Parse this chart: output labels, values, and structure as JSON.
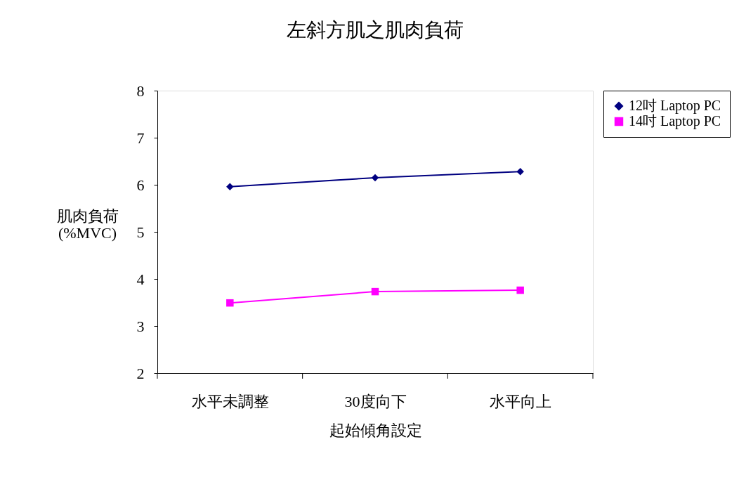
{
  "chart_data": {
    "type": "line",
    "title": "左斜方肌之肌肉負荷",
    "xlabel": "起始傾角設定",
    "ylabel": "肌肉負荷\n(%MVC)",
    "categories": [
      "水平未調整",
      "30度向下",
      "水平向上"
    ],
    "series": [
      {
        "name": "12吋 Laptop PC",
        "color": "#000080",
        "marker": "diamond",
        "values": [
          5.96,
          6.15,
          6.28
        ]
      },
      {
        "name": "14吋 Laptop PC",
        "color": "#ff00ff",
        "marker": "square",
        "values": [
          3.49,
          3.73,
          3.76
        ]
      }
    ],
    "ylim": [
      2,
      8
    ],
    "yticks": [
      2,
      3,
      4,
      5,
      6,
      7,
      8
    ],
    "grid": false,
    "legend": "right"
  }
}
